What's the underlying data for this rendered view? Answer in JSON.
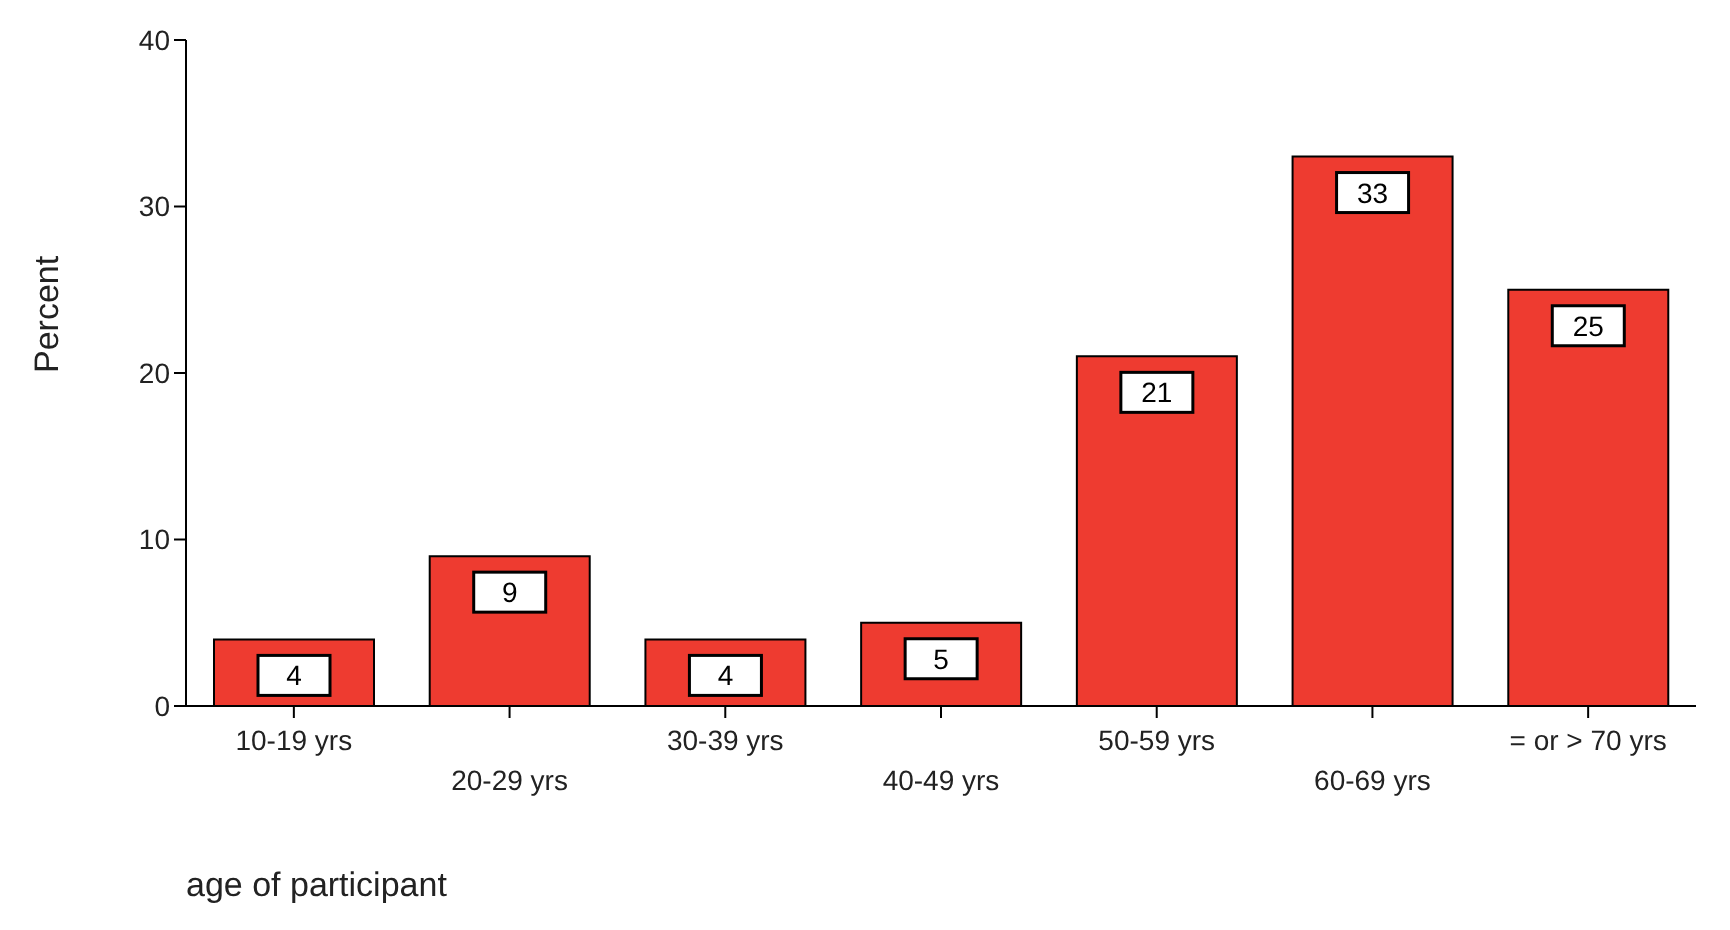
{
  "chart_data": {
    "type": "bar",
    "xlabel": "age of participant",
    "ylabel": "Percent",
    "categories": [
      "10-19 yrs",
      "20-29 yrs",
      "30-39 yrs",
      "40-49 yrs",
      "50-59 yrs",
      "60-69 yrs",
      "= or > 70 yrs"
    ],
    "values": [
      4,
      9,
      4,
      5,
      21,
      33,
      25
    ],
    "color": "#ee3b30",
    "data_labels": true,
    "ylim": [
      0,
      40
    ],
    "yticks": [
      0,
      10,
      20,
      30,
      40
    ],
    "grid": false,
    "legend": false
  }
}
